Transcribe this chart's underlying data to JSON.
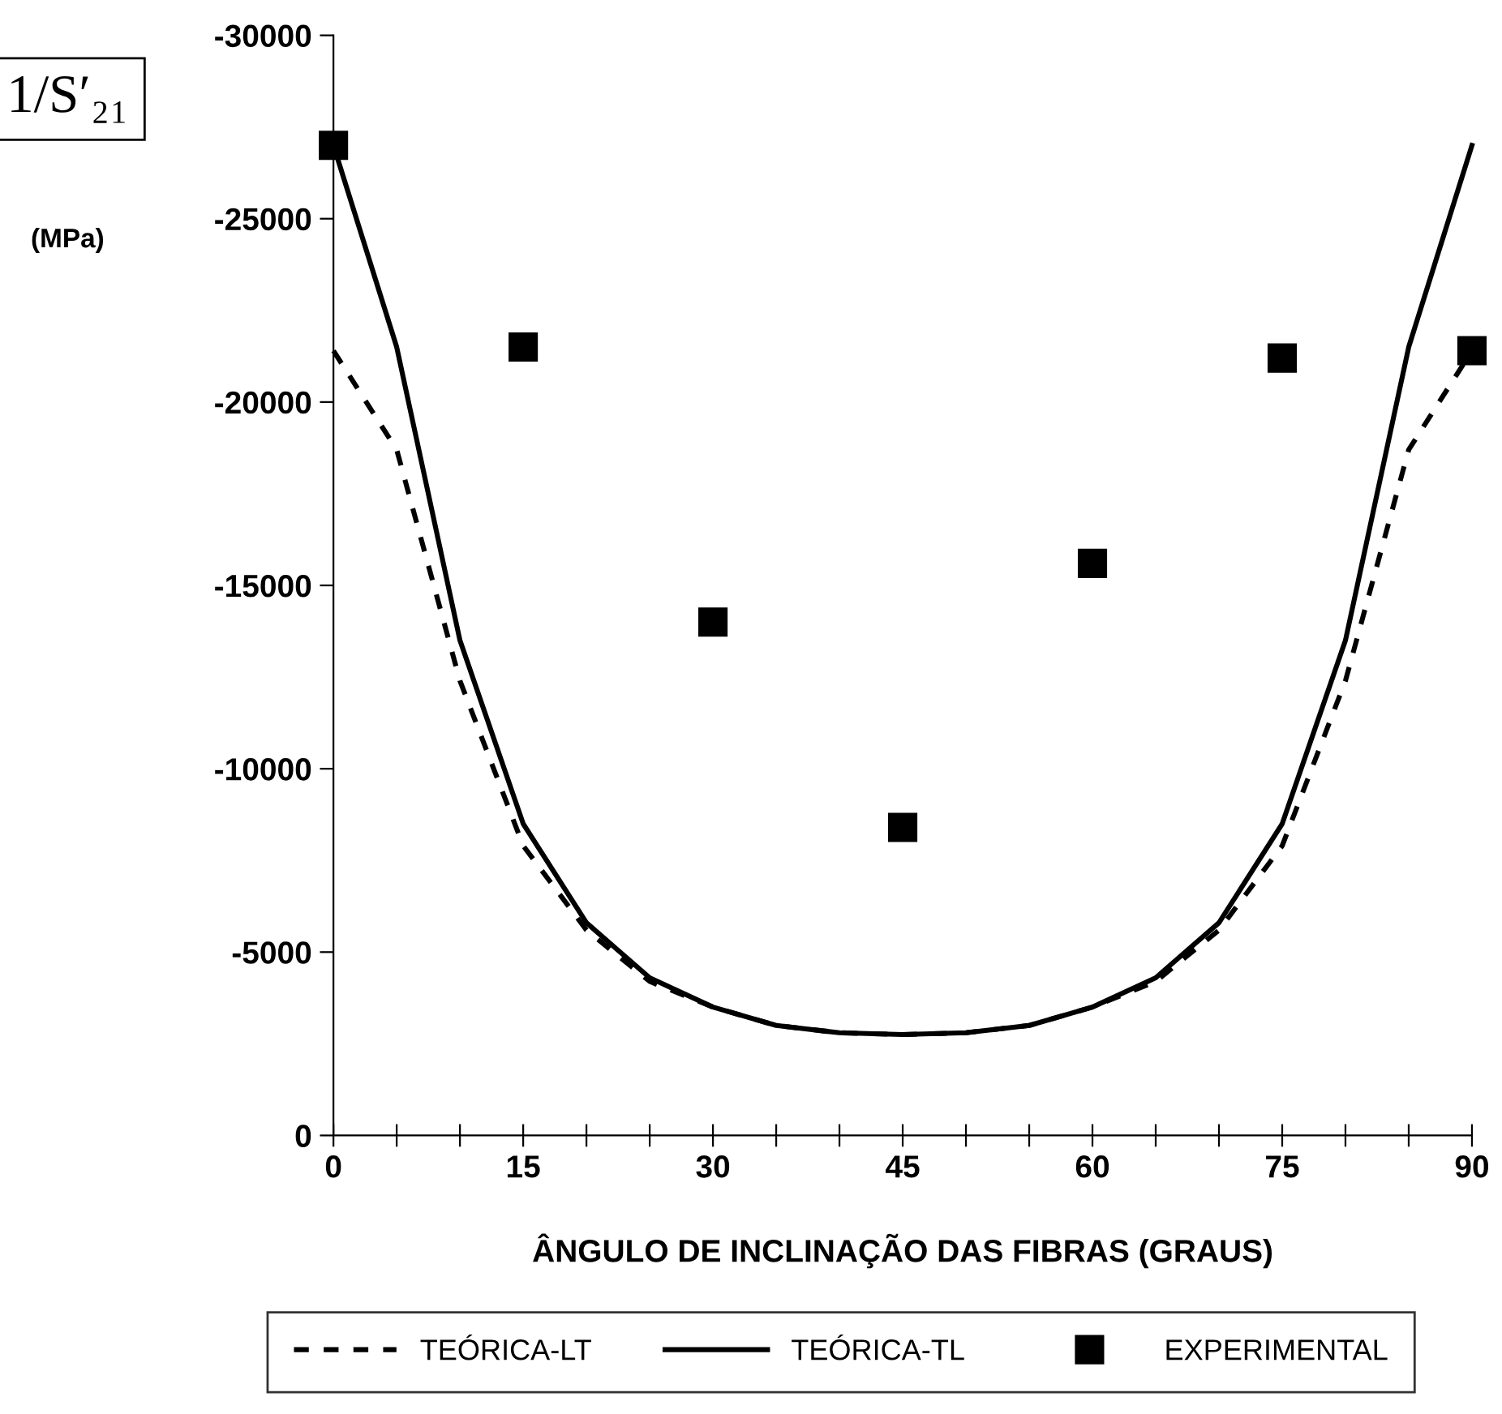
{
  "chart_data": {
    "type": "line",
    "xlabel": "ÂNGULO DE INCLINAÇÃO DAS FIBRAS (GRAUS)",
    "ylabel": "1/S′₂₁",
    "annotations": [
      "(MPa)"
    ],
    "xlim": [
      0,
      90
    ],
    "xticks": [
      0,
      {
        "value": 5,
        "label": null
      },
      {
        "value": 10,
        "label": null
      },
      15,
      {
        "value": 20,
        "label": null
      },
      {
        "value": 25,
        "label": null
      },
      30,
      {
        "value": 35,
        "label": null
      },
      {
        "value": 40,
        "label": null
      },
      45,
      {
        "value": 50,
        "label": null
      },
      {
        "value": 55,
        "label": null
      },
      60,
      {
        "value": 65,
        "label": null
      },
      {
        "value": 70,
        "label": null
      },
      75,
      {
        "value": 80,
        "label": null
      },
      {
        "value": 85,
        "label": null
      },
      90
    ],
    "ylim": [
      0,
      -30000
    ],
    "yticks": [
      0,
      -5000,
      -10000,
      -15000,
      -20000,
      -25000,
      -30000
    ],
    "grid": false,
    "legend": "bottom",
    "series": [
      {
        "name": "TEÓRICA-LT",
        "line_style": "dashed",
        "color": "#000000",
        "x": [
          0,
          5,
          10,
          15,
          20,
          25,
          30,
          35,
          40,
          45,
          50,
          55,
          60,
          65,
          70,
          75,
          80,
          85,
          90
        ],
        "values": [
          -21400,
          -18700,
          -12400,
          -7900,
          -5600,
          -4200,
          -3500,
          -3000,
          -2800,
          -2750,
          -2800,
          -3000,
          -3500,
          -4200,
          -5600,
          -7900,
          -12400,
          -18700,
          -21400
        ]
      },
      {
        "name": "TEÓRICA-TL",
        "line_style": "solid",
        "color": "#000000",
        "x": [
          0,
          5,
          10,
          15,
          20,
          25,
          30,
          35,
          40,
          45,
          50,
          55,
          60,
          65,
          70,
          75,
          80,
          85,
          90
        ],
        "values": [
          -27000,
          -21500,
          -13500,
          -8500,
          -5800,
          -4300,
          -3500,
          -3000,
          -2800,
          -2750,
          -2800,
          -3000,
          -3500,
          -4300,
          -5800,
          -8500,
          -13500,
          -21500,
          -27000
        ]
      },
      {
        "name": "EXPERIMENTAL",
        "type": "scatter",
        "marker": "square",
        "color": "#000000",
        "x": [
          0,
          15,
          30,
          45,
          60,
          75,
          90
        ],
        "values": [
          -27000,
          -21500,
          -14000,
          -8400,
          -15600,
          -21200,
          -21400
        ]
      }
    ]
  }
}
